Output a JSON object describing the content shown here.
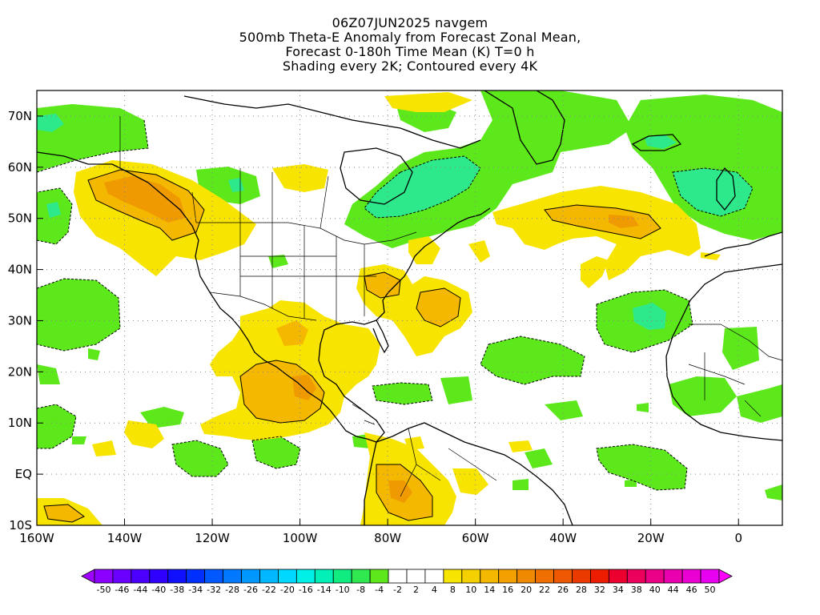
{
  "title": {
    "line1": "06Z07JUN2025 navgem",
    "line2": "500mb Theta-E Anomaly from Forecast Zonal Mean,",
    "line3": "Forecast 0-180h Time Mean (K) T=0 h",
    "line4": "Shading every 2K; Contoured every 4K"
  },
  "map": {
    "lat_labels": [
      "70N",
      "60N",
      "50N",
      "40N",
      "30N",
      "20N",
      "10N",
      "EQ",
      "10S"
    ],
    "lat_values": [
      70,
      60,
      50,
      40,
      30,
      20,
      10,
      0,
      -10
    ],
    "lon_labels": [
      "160W",
      "140W",
      "120W",
      "100W",
      "80W",
      "60W",
      "40W",
      "20W",
      "0"
    ],
    "lon_values": [
      -160,
      -140,
      -120,
      -100,
      -80,
      -60,
      -40,
      -20,
      0
    ],
    "extent": {
      "lon_min": -160,
      "lon_max": 10,
      "lat_min": -10,
      "lat_max": 75
    },
    "positive_fill": "#f7e400",
    "positive_strong_fill": "#f5b800",
    "positive_max_fill": "#ef9a00",
    "negative_fill": "#5de81c",
    "negative_strong_fill": "#2ee88c",
    "land_outline_color": "#000000",
    "grid_color": "#888888"
  },
  "colorbar": {
    "labels": [
      "-50",
      "-46",
      "-44",
      "-40",
      "-38",
      "-34",
      "-32",
      "-28",
      "-26",
      "-22",
      "-20",
      "-16",
      "-14",
      "-10",
      "-8",
      "-4",
      "-2",
      "2",
      "4",
      "8",
      "10",
      "14",
      "16",
      "20",
      "22",
      "26",
      "28",
      "32",
      "34",
      "38",
      "40",
      "44",
      "46",
      "50"
    ],
    "colors": [
      "#8b00ff",
      "#6a00ff",
      "#4b00ff",
      "#2e00ff",
      "#1010ff",
      "#0030ff",
      "#0058ff",
      "#0078ff",
      "#0098ff",
      "#00b8ff",
      "#00d8ff",
      "#00f0e8",
      "#00f0b8",
      "#10ec80",
      "#30e850",
      "#5de81c",
      "#ffffff",
      "#ffffff",
      "#ffffff",
      "#f7e400",
      "#f5d000",
      "#f5b800",
      "#f3a000",
      "#ef8a00",
      "#ef7000",
      "#ed5800",
      "#eb3a00",
      "#eb1c00",
      "#eb0030",
      "#eb005c",
      "#eb0088",
      "#eb00b0",
      "#eb00d4",
      "#e800f0"
    ],
    "under_color": "#a000ff",
    "over_color": "#ff00ff"
  }
}
